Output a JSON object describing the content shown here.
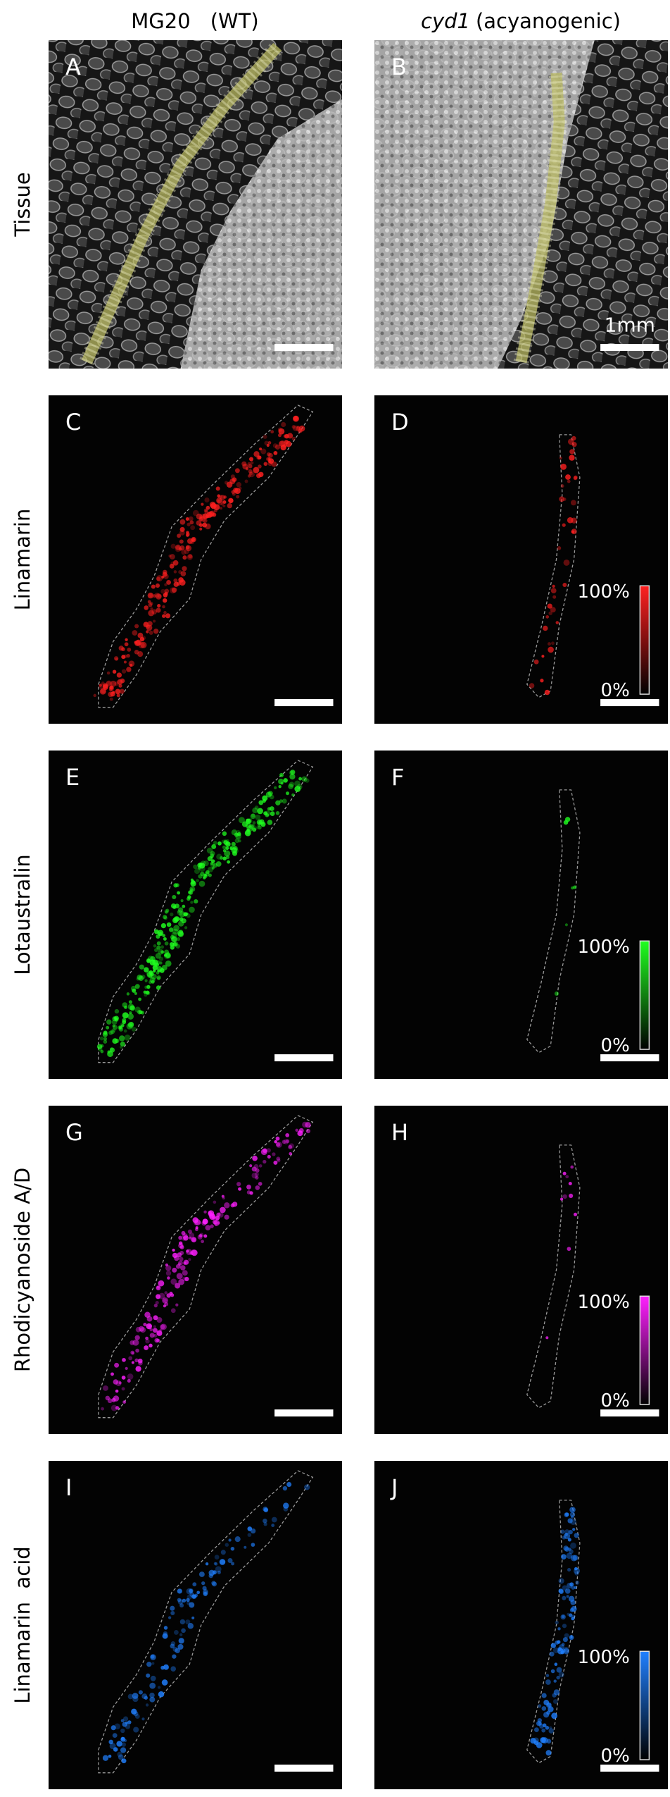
{
  "columns": [
    {
      "title": "MG20",
      "note": "(WT)"
    },
    {
      "title": "cyd1",
      "note": "(acyanogenic)"
    }
  ],
  "rows": [
    {
      "label": "Tissue",
      "panels": [
        "A",
        "B"
      ]
    },
    {
      "label": "Linamarin",
      "panels": [
        "C",
        "D"
      ],
      "color": "#ff2020"
    },
    {
      "label": "Lotaustralin",
      "panels": [
        "E",
        "F"
      ],
      "color": "#20ff20"
    },
    {
      "label": "Rhodicyanoside A/D",
      "panels": [
        "G",
        "H"
      ],
      "color": "#ff20ff"
    },
    {
      "label": "Linamarin  acid",
      "panels": [
        "I",
        "J"
      ],
      "color": "#2080ff"
    }
  ],
  "scale_bar": "1mm",
  "colorbar": {
    "max": "100%",
    "min": "0%"
  }
}
